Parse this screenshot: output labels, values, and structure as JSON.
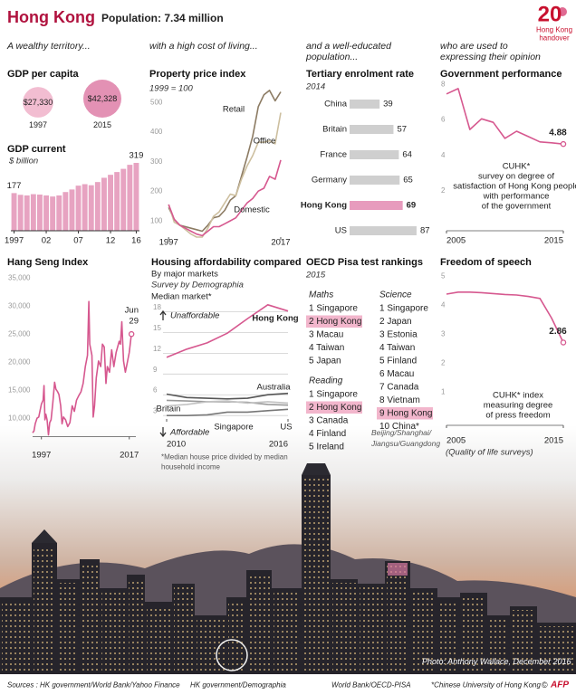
{
  "header": {
    "title": "Hong Kong",
    "subtitle": "Population: 7.34 million",
    "logo": {
      "number": "20",
      "lines": [
        "Hong Kong",
        "handover"
      ]
    }
  },
  "columns": [
    [
      "A wealthy territory..."
    ],
    [
      "with a high cost of living..."
    ],
    [
      "and a well-educated",
      "population..."
    ],
    [
      "who are used to",
      "expressing their opinion"
    ]
  ],
  "chart_data": [
    {
      "type": "bubble",
      "title": "GDP per capita",
      "categories": [
        "1997",
        "2015"
      ],
      "values": [
        27330,
        42328
      ],
      "value_labels": [
        "$27,330",
        "$42,328"
      ],
      "colors": [
        "#f2bdd1",
        "#e391b4"
      ]
    },
    {
      "type": "bar",
      "title": "GDP current",
      "subtitle": "$ billion",
      "categories": [
        "1997",
        null,
        null,
        null,
        null,
        "02",
        null,
        null,
        null,
        null,
        "07",
        null,
        null,
        null,
        null,
        "12",
        null,
        null,
        null,
        "16"
      ],
      "values": [
        177,
        169,
        166,
        172,
        170,
        166,
        161,
        166,
        182,
        194,
        212,
        219,
        214,
        229,
        249,
        263,
        276,
        291,
        310,
        319
      ],
      "color": "#e7a3c1"
    },
    {
      "type": "line",
      "title": "Property price index",
      "subtitle": "1999 = 100",
      "x": [
        1997,
        1998,
        1999,
        2000,
        2001,
        2002,
        2003,
        2004,
        2005,
        2006,
        2007,
        2008,
        2009,
        2010,
        2011,
        2012,
        2013,
        2014,
        2015,
        2016,
        2017
      ],
      "series": [
        {
          "name": "Retail",
          "color": "#8c7b63",
          "values": [
            160,
            120,
            100,
            95,
            90,
            85,
            80,
            100,
            125,
            130,
            150,
            185,
            200,
            265,
            330,
            400,
            500,
            540,
            555,
            520,
            550
          ]
        },
        {
          "name": "Office",
          "color": "#cdbf9f",
          "values": [
            170,
            110,
            100,
            85,
            70,
            60,
            60,
            90,
            130,
            145,
            175,
            205,
            200,
            255,
            300,
            335,
            380,
            380,
            385,
            375,
            480
          ]
        },
        {
          "name": "Domestic",
          "color": "#d6588f",
          "values": [
            170,
            120,
            100,
            90,
            80,
            70,
            65,
            80,
            95,
            95,
            105,
            115,
            125,
            150,
            175,
            190,
            215,
            225,
            265,
            255,
            320
          ]
        }
      ],
      "xlim": [
        1996,
        2018.3
      ],
      "ylim": [
        60,
        570
      ],
      "xticks": [
        1997,
        2017
      ],
      "yticks": [
        100,
        200,
        300,
        400,
        500
      ],
      "grid": false
    },
    {
      "type": "hbar",
      "title": "Tertiary enrolment rate",
      "subtitle": "2014",
      "categories": [
        "China",
        "Britain",
        "France",
        "Germany",
        "Hong Kong",
        "US"
      ],
      "values": [
        39,
        57,
        64,
        65,
        69,
        87
      ],
      "color": "#cfcfcf",
      "highlight": 4,
      "highlight_color": "#e79bbd"
    },
    {
      "type": "line",
      "title": "Government performance",
      "x": [
        2005,
        2006,
        2007,
        2008,
        2009,
        2010,
        2011,
        2012,
        2013,
        2014,
        2015
      ],
      "values": [
        7.7,
        8.0,
        5.7,
        6.3,
        6.1,
        5.2,
        5.6,
        5.3,
        5.0,
        4.95,
        4.88
      ],
      "color": "#d6588f",
      "xlim": [
        2005,
        2015
      ],
      "ylim": [
        0,
        8.3
      ],
      "xticks": [
        2005,
        2015
      ],
      "yticks": [
        2,
        4,
        6,
        8
      ],
      "grid": false,
      "annotation": [
        "CUHK*",
        "survey on degree of",
        "satisfaction of Hong Kong people",
        "with performance",
        "of the government"
      ]
    },
    {
      "type": "line",
      "title": "Hang Seng Index",
      "x": [
        1995,
        1995.3,
        1995.6,
        1996,
        1996.4,
        1996.8,
        1997,
        1997.4,
        1997.6,
        1997.8,
        1998,
        1998.3,
        1998.6,
        1998.9,
        1999.2,
        1999.6,
        2000,
        2000.3,
        2000.7,
        2001,
        2001.4,
        2001.7,
        2002,
        2002.5,
        2003,
        2003.5,
        2004,
        2004.5,
        2005,
        2005.5,
        2006,
        2006.5,
        2007,
        2007.5,
        2007.8,
        2008,
        2008.5,
        2008.8,
        2009.1,
        2009.5,
        2010,
        2010.5,
        2010.9,
        2011.3,
        2011.7,
        2012,
        2012.5,
        2013,
        2013.5,
        2014,
        2014.7,
        2015,
        2015.3,
        2015.7,
        2016.1,
        2016.5,
        2017,
        2017.5
      ],
      "values": [
        8200,
        8500,
        9800,
        10800,
        11000,
        12500,
        13300,
        14000,
        16600,
        10500,
        11500,
        10500,
        7800,
        10000,
        10500,
        13500,
        17200,
        16000,
        15500,
        15000,
        13000,
        9800,
        11000,
        10500,
        9300,
        10000,
        13000,
        12000,
        14000,
        14800,
        15500,
        17000,
        20000,
        22000,
        31600,
        24000,
        22000,
        11000,
        13000,
        18000,
        21000,
        20000,
        24000,
        23500,
        17000,
        20000,
        19000,
        23000,
        20000,
        22500,
        24500,
        24000,
        28000,
        21000,
        19000,
        20500,
        22500,
        25800
      ],
      "color": "#d6588f",
      "xlim": [
        1995,
        2018.5
      ],
      "ylim": [
        7500,
        36000
      ],
      "xticks": [
        1997,
        2017
      ],
      "yticks": [
        {
          "value": 10000,
          "label": "10,000"
        },
        {
          "value": 15000,
          "label": "15,000"
        },
        {
          "value": 20000,
          "label": "20,000"
        },
        {
          "value": 25000,
          "label": "25,000"
        },
        {
          "value": 30000,
          "label": "30,000"
        },
        {
          "value": 35000,
          "label": "35,000"
        }
      ],
      "grid": false,
      "annotation": [
        "Jun",
        "29"
      ]
    },
    {
      "type": "line",
      "title": "Housing affordability compared",
      "subtitle": "By major markets",
      "byline": "Survey by Demographia",
      "y_label": "Median market*",
      "x": [
        2010,
        2011,
        2012,
        2013,
        2014,
        2015,
        2016
      ],
      "series": [
        {
          "name": "Hong Kong",
          "color": "#d6588f",
          "values": [
            11.4,
            12.6,
            13.5,
            14.9,
            17.0,
            19.0,
            18.1
          ]
        },
        {
          "name": "Australia",
          "color": "#555555",
          "values": [
            6.1,
            5.6,
            5.5,
            5.4,
            5.5,
            6.0,
            6.2
          ]
        },
        {
          "name": "Britain",
          "color": "#9a9a9a",
          "values": [
            5.2,
            5.1,
            5.0,
            5.0,
            4.9,
            4.6,
            4.5
          ]
        },
        {
          "name": "Singapore",
          "color": "#c2c2c2",
          "values": [
            4.4,
            4.6,
            5.0,
            5.1,
            4.8,
            5.0,
            4.8
          ]
        },
        {
          "name": "US",
          "color": "#777777",
          "values": [
            3.0,
            3.0,
            3.1,
            3.5,
            3.5,
            3.7,
            3.9
          ]
        }
      ],
      "xlim": [
        2010,
        2016
      ],
      "ylim": [
        2.5,
        19.5
      ],
      "xticks": [
        2010,
        2016
      ],
      "yticks": [
        3,
        6,
        9,
        12,
        15,
        18
      ],
      "grid": true,
      "annotations": [
        "Unaffordable",
        "Affordable"
      ],
      "note": [
        "*Median house price divided by median",
        "household income"
      ]
    },
    {
      "type": "line",
      "title": "Freedom of speech",
      "x": [
        2005,
        2006,
        2007,
        2008,
        2009,
        2010,
        2011,
        2012,
        2013,
        2014,
        2015
      ],
      "values": [
        4.53,
        4.6,
        4.6,
        4.58,
        4.55,
        4.52,
        4.5,
        4.45,
        4.38,
        3.7,
        2.86
      ],
      "color": "#d6588f",
      "xlim": [
        2005,
        2015
      ],
      "ylim": [
        0,
        5.2
      ],
      "xticks": [
        2005,
        2015
      ],
      "yticks": [
        1,
        2,
        3,
        4,
        5
      ],
      "grid": false,
      "annotation": [
        "CUHK* index",
        "measuring degree",
        "of press freedom"
      ],
      "footer": "(Quality of life surveys)"
    }
  ],
  "pisa": {
    "title": "OECD Pisa test rankings",
    "subtitle": "2015",
    "highlight_color": "#f2b6cc",
    "lists": [
      {
        "heading": "Maths",
        "items": [
          "1 Singapore",
          "2 Hong Kong",
          "3 Macau",
          "4 Taiwan",
          "5 Japan"
        ],
        "highlight": 1
      },
      {
        "heading": "Reading",
        "items": [
          "1 Singapore",
          "2 Hong Kong",
          "3 Canada",
          "4 Finland",
          "5 Ireland"
        ],
        "highlight": 1
      },
      {
        "heading": "Science",
        "items": [
          "1 Singapore",
          "2 Japan",
          "3 Estonia",
          "4 Taiwan",
          "5 Finland",
          "6 Macau",
          "7 Canada",
          "8 Vietnam",
          "9 Hong Kong",
          "10 China*"
        ],
        "highlight": 8
      }
    ],
    "note": [
      "Beijing/Shanghai/",
      "Jiangsu/Guangdong"
    ]
  },
  "photo_credit": "Photo: Anthony Wallace, December 2016",
  "sources": [
    "Sources : HK government/World Bank/Yahoo Finance",
    "HK government/Demographia",
    "World Bank/OECD-PISA",
    "*Chinese University of Hong Kong"
  ],
  "copyright": "©",
  "agency": "AFP"
}
